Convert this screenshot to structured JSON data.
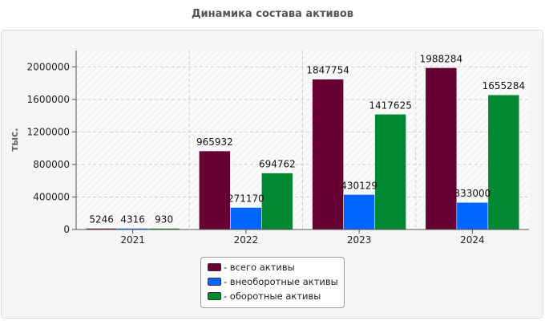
{
  "chart_data": {
    "type": "bar",
    "title": "Динамика состава активов",
    "xlabel": "",
    "ylabel": "тыс.",
    "categories": [
      "2021",
      "2022",
      "2023",
      "2024"
    ],
    "ylim": [
      0,
      2200000
    ],
    "yticks": [
      0,
      400000,
      800000,
      1200000,
      1600000,
      2000000
    ],
    "grid": true,
    "legend_position": "bottom-center",
    "series": [
      {
        "name": "- всего активы",
        "color": "#660033",
        "values": [
          5246,
          965932,
          1847754,
          1988284
        ]
      },
      {
        "name": "- внеоборотные активы",
        "color": "#0066ff",
        "values": [
          4316,
          271170,
          430129,
          333000
        ]
      },
      {
        "name": "- оборотные активы",
        "color": "#008833",
        "values": [
          930,
          694762,
          1417625,
          1655284
        ]
      }
    ]
  }
}
